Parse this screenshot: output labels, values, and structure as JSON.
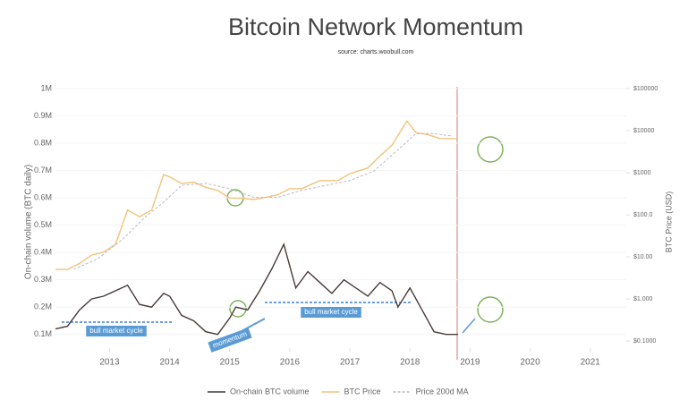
{
  "chart_data": {
    "type": "line",
    "title": "Bitcoin Network Momentum",
    "subtitle": "source: charts.woobull.com",
    "ylabel": "On-chain volume (BTC daily)",
    "y2label": "BTC Price (USD)",
    "xlim": [
      2012.1,
      2021.6
    ],
    "xticks": [
      2013,
      2014,
      2015,
      2016,
      2017,
      2018,
      2019,
      2020,
      2021
    ],
    "ylim": [
      50000,
      1000000
    ],
    "yticks": [
      {
        "value": 100000,
        "label": "0.1M"
      },
      {
        "value": 200000,
        "label": "0.2M"
      },
      {
        "value": 300000,
        "label": "0.3M"
      },
      {
        "value": 400000,
        "label": "0.4M"
      },
      {
        "value": 500000,
        "label": "0.5M"
      },
      {
        "value": 600000,
        "label": "0.6M"
      },
      {
        "value": 700000,
        "label": "0.7M"
      },
      {
        "value": 800000,
        "label": "0.8M"
      },
      {
        "value": 900000,
        "label": "0.9M"
      },
      {
        "value": 1000000,
        "label": "1M"
      }
    ],
    "y2lim": [
      0.068,
      100000
    ],
    "y2log": true,
    "y2ticks": [
      {
        "value": 0.1,
        "label": "$0.1000"
      },
      {
        "value": 1,
        "label": "$1.000"
      },
      {
        "value": 10,
        "label": "$10.00"
      },
      {
        "value": 100,
        "label": "$100.0"
      },
      {
        "value": 1000,
        "label": "$1000"
      },
      {
        "value": 10000,
        "label": "$10000"
      },
      {
        "value": 100000,
        "label": "$100000"
      }
    ],
    "series": [
      {
        "name": "On-chain BTC volume",
        "color": "#4a3a38",
        "axis": "y",
        "x": [
          2012.1,
          2012.3,
          2012.5,
          2012.7,
          2012.9,
          2013.1,
          2013.3,
          2013.5,
          2013.7,
          2013.9,
          2014.0,
          2014.2,
          2014.4,
          2014.6,
          2014.8,
          2015.0,
          2015.1,
          2015.3,
          2015.5,
          2015.7,
          2015.9,
          2016.1,
          2016.3,
          2016.5,
          2016.7,
          2016.9,
          2017.1,
          2017.3,
          2017.5,
          2017.7,
          2017.8,
          2018.0,
          2018.2,
          2018.4,
          2018.6,
          2018.8
        ],
        "values": [
          120000,
          130000,
          190000,
          230000,
          240000,
          260000,
          280000,
          210000,
          200000,
          250000,
          240000,
          170000,
          150000,
          110000,
          100000,
          160000,
          200000,
          190000,
          260000,
          340000,
          430000,
          270000,
          330000,
          290000,
          250000,
          300000,
          270000,
          240000,
          290000,
          260000,
          200000,
          270000,
          190000,
          110000,
          100000,
          100000
        ]
      },
      {
        "name": "BTC Price",
        "color": "#f2c27a",
        "axis": "y2",
        "x": [
          2012.1,
          2012.3,
          2012.5,
          2012.7,
          2012.9,
          2013.1,
          2013.3,
          2013.5,
          2013.7,
          2013.9,
          2014.0,
          2014.2,
          2014.4,
          2014.6,
          2014.8,
          2015.0,
          2015.2,
          2015.4,
          2015.6,
          2015.8,
          2016.0,
          2016.2,
          2016.5,
          2016.8,
          2017.0,
          2017.3,
          2017.5,
          2017.7,
          2017.95,
          2018.1,
          2018.3,
          2018.5,
          2018.8
        ],
        "values": [
          5,
          5,
          7,
          11,
          13,
          20,
          130,
          90,
          130,
          900,
          800,
          550,
          600,
          450,
          380,
          250,
          250,
          230,
          260,
          300,
          420,
          420,
          650,
          650,
          950,
          1300,
          2500,
          4500,
          17000,
          9000,
          8000,
          6500,
          6400
        ]
      },
      {
        "name": "Price 200d MA",
        "color": "#b9bcc4",
        "axis": "y2",
        "dashed": true,
        "x": [
          2012.4,
          2012.8,
          2013.2,
          2013.6,
          2013.9,
          2014.2,
          2014.6,
          2015.0,
          2015.4,
          2015.8,
          2016.2,
          2016.6,
          2017.0,
          2017.4,
          2017.8,
          2018.1,
          2018.4,
          2018.7
        ],
        "values": [
          5,
          9,
          25,
          90,
          200,
          500,
          560,
          420,
          260,
          260,
          380,
          500,
          650,
          1100,
          3500,
          8500,
          8500,
          7500
        ]
      }
    ],
    "annotations": [
      "bull market cycle",
      "momentum",
      "bull market cycle"
    ]
  }
}
